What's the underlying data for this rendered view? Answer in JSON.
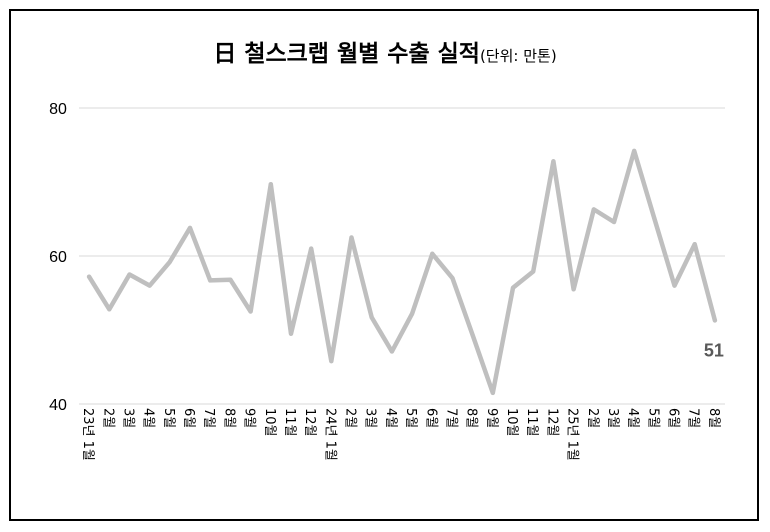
{
  "title": "日 철스크랩 월별 수출 실적",
  "unit": "(단위: 만톤)",
  "colors": {
    "line": "#bfbfbf",
    "grid": "#d9d9d9",
    "label": "#595959",
    "frame": "#000000"
  },
  "chart_data": {
    "type": "line",
    "title": "日 철스크랩 월별 수출 실적(단위: 만톤)",
    "xlabel": "",
    "ylabel": "",
    "ylim": [
      40,
      80
    ],
    "yticks": [
      40,
      60,
      80
    ],
    "grid": true,
    "legend": "none",
    "categories": [
      "23년 1월",
      "2월",
      "3월",
      "4월",
      "5월",
      "6월",
      "7월",
      "8월",
      "9월",
      "10월",
      "11월",
      "12월",
      "24년 1월",
      "2월",
      "3월",
      "4월",
      "5월",
      "6월",
      "7월",
      "8월",
      "9월",
      "10월",
      "11월",
      "12월",
      "25년 1월",
      "2월",
      "3월",
      "4월",
      "5월",
      "6월",
      "7월",
      "8월"
    ],
    "series": [
      {
        "values": [
          57.2,
          52.8,
          57.5,
          56.0,
          59.2,
          63.8,
          56.7,
          56.8,
          52.5,
          69.7,
          49.5,
          61.0,
          45.8,
          62.5,
          51.7,
          47.1,
          52.2,
          60.3,
          57.0,
          49.3,
          41.5,
          55.7,
          57.9,
          72.8,
          55.5,
          66.3,
          64.6,
          74.2,
          65.1,
          56.0,
          61.6,
          51.3
        ]
      }
    ],
    "data_labels": [
      {
        "index": 31,
        "text": "51"
      }
    ]
  }
}
